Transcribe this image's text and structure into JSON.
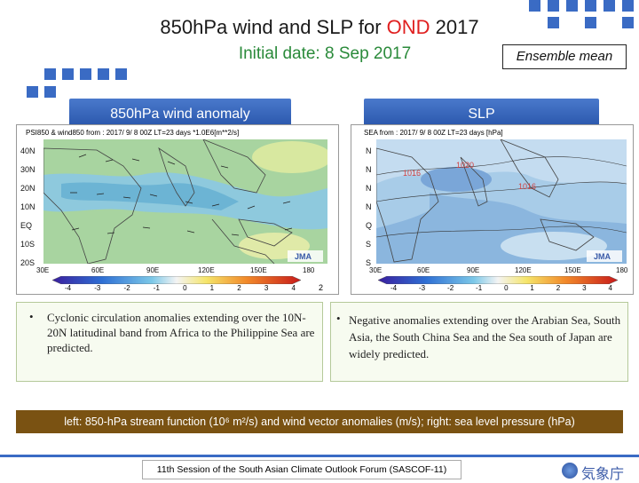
{
  "slide": {
    "title_pre": "850h",
    "title_pa": "Pa wind and SLP for ",
    "title_ond": "OND",
    "title_year": " 2017",
    "subtitle": "Initial date: 8 Sep 2017",
    "ensemble_label": "Ensemble mean",
    "left_heading": "850h",
    "left_heading_rest": "Pa wind anomaly",
    "right_heading": "SLP",
    "note": "left: 850-hPa stream function (10⁶ m²/s) and wind vector anomalies (m/s); right: sea level pressure (hPa)",
    "footer": "11th Session of the South Asian Climate Outlook Forum (SASCOF-11)",
    "jma_logo_text": "気象庁",
    "accent_color": "#3a6bc4",
    "note_color": "#7a5212"
  },
  "left_map": {
    "header": "PSI850 & wind850  from : 2017/ 9/  8 00Z LT=23 days  *1.0E6[m**2/s]",
    "lat_labels": [
      "40N",
      "30N",
      "20N",
      "10N",
      "EQ",
      "10S",
      "20S"
    ],
    "lon_labels": [
      "30E",
      "60E",
      "90E",
      "120E",
      "150E",
      "180"
    ],
    "colorbar_labels": [
      "-4",
      "-3",
      "-2",
      "-1",
      "0",
      "1",
      "2",
      "3",
      "4"
    ],
    "vector_scale_label": "2",
    "logo": "JMA"
  },
  "right_map": {
    "header": "SEA  from : 2017/ 9/  8 00Z LT=23 days  [hPa]",
    "lat_labels": [
      "N",
      "N",
      "N",
      "N",
      "Q",
      "S",
      "S"
    ],
    "lon_labels": [
      "30E",
      "60E",
      "90E",
      "120E",
      "150E",
      "180"
    ],
    "contour_labels": [
      "1016",
      "1020",
      "1016"
    ],
    "colorbar_labels": [
      "-4",
      "-3",
      "-2",
      "-1",
      "0",
      "1",
      "2",
      "3",
      "4"
    ],
    "logo": "JMA"
  },
  "left_text": {
    "bullet": "•",
    "text": "Cyclonic circulation anomalies extending over the 10N-20N latitudinal band from Africa to the Philippine Sea are predicted."
  },
  "right_text": {
    "bullet": "•",
    "text": "Negative anomalies extending over the Arabian Sea, South Asia, the South China Sea and the Sea south of Japan are widely predicted."
  }
}
